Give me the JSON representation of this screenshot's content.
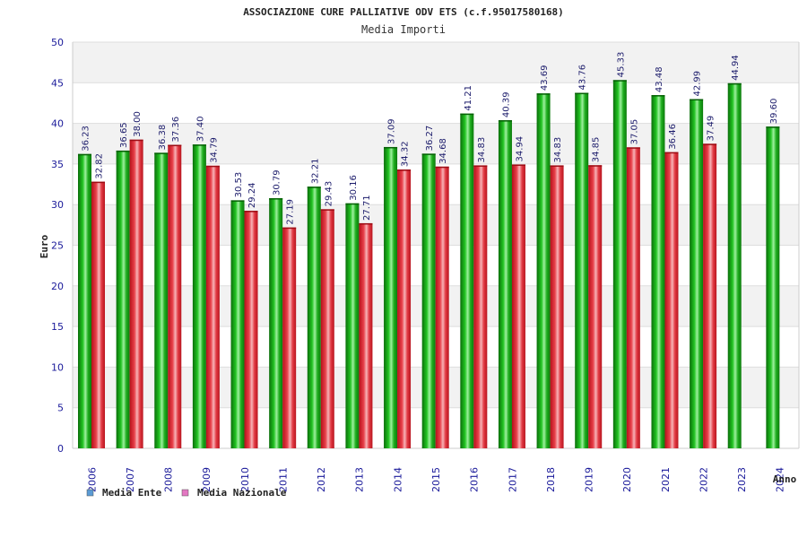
{
  "chart_data": {
    "type": "bar",
    "title": "ASSOCIAZIONE CURE PALLIATIVE ODV ETS (c.f.95017580168)",
    "subtitle": "Media Importi",
    "xlabel": "Anno",
    "ylabel": "Euro",
    "ylim": [
      0,
      50
    ],
    "yticks": [
      0,
      5,
      10,
      15,
      20,
      25,
      30,
      35,
      40,
      45,
      50
    ],
    "categories": [
      "2006",
      "2007",
      "2008",
      "2009",
      "2010",
      "2011",
      "2012",
      "2013",
      "2014",
      "2015",
      "2016",
      "2017",
      "2018",
      "2019",
      "2020",
      "2021",
      "2022",
      "2023",
      "2024"
    ],
    "series": [
      {
        "name": "Media Ente",
        "legend_color": "#5b9bd5",
        "bar_color": "#1fa81f",
        "values": [
          36.23,
          36.65,
          36.38,
          37.4,
          30.53,
          30.79,
          32.21,
          30.16,
          37.09,
          36.27,
          41.21,
          40.39,
          43.69,
          43.76,
          45.33,
          43.48,
          42.99,
          44.94,
          39.6
        ],
        "labels": [
          "36.23",
          "36.65",
          "36.38",
          "37.40",
          "30.53",
          "30.79",
          "32.21",
          "30.16",
          "37.09",
          "36.27",
          "41.21",
          "40.39",
          "43.69",
          "43.76",
          "45.33",
          "43.48",
          "42.99",
          "44.94",
          "39.60"
        ]
      },
      {
        "name": "Media Nazionale",
        "legend_color": "#e377c2",
        "bar_color": "#e8323c",
        "values": [
          32.82,
          38.0,
          37.36,
          34.79,
          29.24,
          27.19,
          29.43,
          27.71,
          34.32,
          34.68,
          34.83,
          34.94,
          34.83,
          34.85,
          37.05,
          36.46,
          37.49,
          null,
          null
        ],
        "labels": [
          "32.82",
          "38.00",
          "37.36",
          "34.79",
          "29.24",
          "27.19",
          "29.43",
          "27.71",
          "34.32",
          "34.68",
          "34.83",
          "34.94",
          "34.83",
          "34.85",
          "37.05",
          "36.46",
          "37.49",
          null,
          null
        ]
      }
    ],
    "grid": true,
    "legend_position": "bottom-left"
  }
}
